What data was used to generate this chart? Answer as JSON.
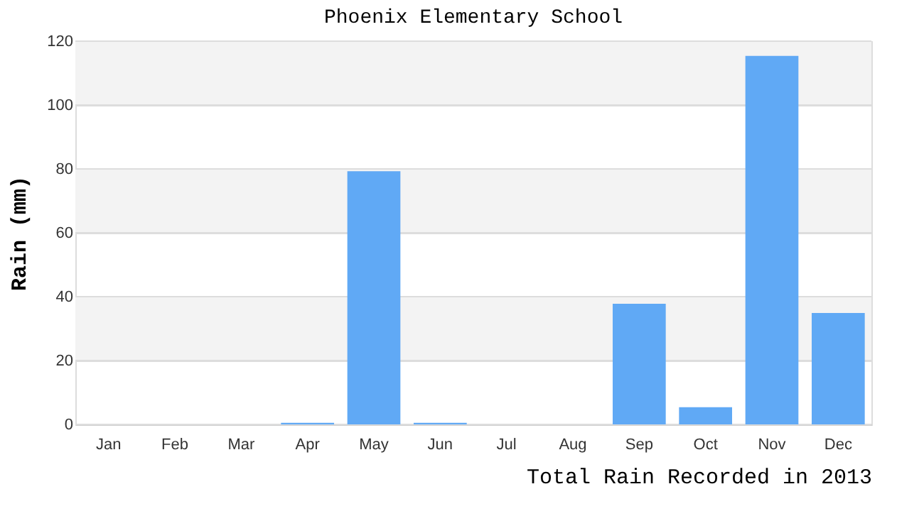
{
  "chart_data": {
    "type": "bar",
    "title": "Phoenix Elementary School",
    "xlabel": "Total Rain Recorded in 2013",
    "ylabel": "Rain (mm)",
    "categories": [
      "Jan",
      "Feb",
      "Mar",
      "Apr",
      "May",
      "Jun",
      "Jul",
      "Aug",
      "Sep",
      "Oct",
      "Nov",
      "Dec"
    ],
    "values": [
      0,
      0,
      0,
      0.5,
      79.3,
      0.5,
      0,
      0,
      37.8,
      5.4,
      115.4,
      34.9
    ],
    "color": "#60a9f5",
    "ylim": [
      0,
      120
    ],
    "yticks": [
      0,
      20,
      40,
      60,
      80,
      100,
      120
    ],
    "grid": "y",
    "bands": [
      {
        "axis": "y",
        "from": 20,
        "to": 40,
        "color": "#f3f3f3"
      },
      {
        "axis": "y",
        "from": 60,
        "to": 80,
        "color": "#f3f3f3"
      },
      {
        "axis": "y",
        "from": 100,
        "to": 120,
        "color": "#f3f3f3"
      }
    ]
  }
}
